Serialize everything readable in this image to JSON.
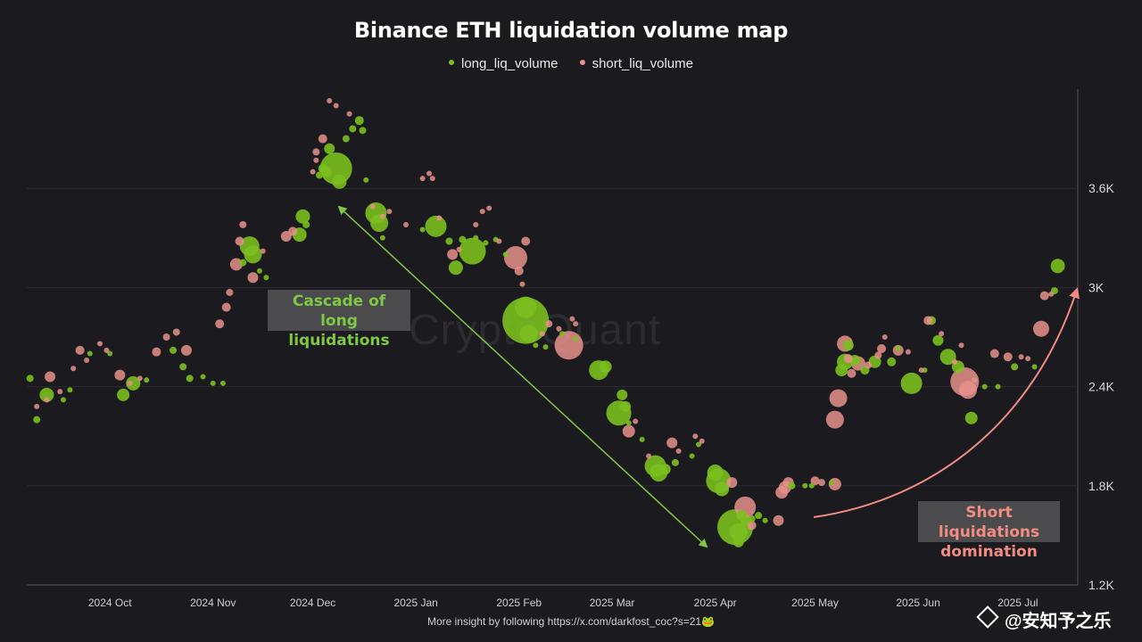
{
  "title": "Binance ETH liquidation volume map",
  "legend": [
    {
      "label": "long_liq_volume",
      "color": "#7bbf1e"
    },
    {
      "label": "short_liq_volume",
      "color": "#e8908a"
    }
  ],
  "annotations": {
    "long": "Cascade of long liquidations",
    "short": "Short liquidations domination"
  },
  "watermark": "CryptoQuant",
  "footer": "More insight by following https://x.com/darkfost_coc?s=21🐸",
  "credit": "@安知予之乐",
  "colors": {
    "background": "#1b1b1f",
    "long": "#7bbf1e",
    "short": "#e8908a",
    "grid": "#2b2b30"
  },
  "chart_data": {
    "type": "scatter",
    "title": "Binance ETH liquidation volume map",
    "y_axis": {
      "position": "right",
      "ticks": [
        "1.2K",
        "1.8K",
        "2.4K",
        "3K",
        "3.6K"
      ],
      "range": [
        1200,
        4200
      ]
    },
    "x_axis": {
      "ticks": [
        "2024 Oct",
        "2024 Nov",
        "2024 Dec",
        "2025 Jan",
        "2025 Feb",
        "2025 Mar",
        "2025 Apr",
        "2025 May",
        "2025 Jun",
        "2025 Jul"
      ],
      "range": [
        "2024-09-06",
        "2025-07-19"
      ]
    },
    "grid": "horizontal",
    "legend_position": "top-center",
    "series": [
      {
        "name": "long_liq_volume",
        "color": "#7bbf1e",
        "points": [
          [
            "2024-09-07",
            2450,
            4
          ],
          [
            "2024-09-09",
            2200,
            4
          ],
          [
            "2024-09-12",
            2350,
            8
          ],
          [
            "2024-09-17",
            2320,
            3
          ],
          [
            "2024-09-19",
            2380,
            3
          ],
          [
            "2024-09-25",
            2600,
            3
          ],
          [
            "2024-10-01",
            2600,
            3
          ],
          [
            "2024-10-05",
            2350,
            7
          ],
          [
            "2024-10-08",
            2420,
            8
          ],
          [
            "2024-10-12",
            2440,
            3
          ],
          [
            "2024-10-20",
            2620,
            4
          ],
          [
            "2024-10-23",
            2520,
            4
          ],
          [
            "2024-10-25",
            2450,
            4
          ],
          [
            "2024-10-29",
            2460,
            3
          ],
          [
            "2024-11-01",
            2420,
            3
          ],
          [
            "2024-11-04",
            2420,
            3
          ],
          [
            "2024-11-10",
            3150,
            4
          ],
          [
            "2024-11-12",
            3250,
            11
          ],
          [
            "2024-11-13",
            3200,
            10
          ],
          [
            "2024-11-15",
            3100,
            3
          ],
          [
            "2024-11-17",
            3060,
            3
          ],
          [
            "2024-11-27",
            3320,
            8
          ],
          [
            "2024-11-28",
            3430,
            8
          ],
          [
            "2024-11-29",
            3380,
            4
          ],
          [
            "2024-12-03",
            3680,
            4
          ],
          [
            "2024-12-04",
            3720,
            5
          ],
          [
            "2024-12-05",
            3700,
            6
          ],
          [
            "2024-12-06",
            3840,
            6
          ],
          [
            "2024-12-08",
            3720,
            18
          ],
          [
            "2024-12-09",
            3640,
            8
          ],
          [
            "2024-12-11",
            3900,
            4
          ],
          [
            "2024-12-13",
            3960,
            4
          ],
          [
            "2024-12-15",
            4010,
            5
          ],
          [
            "2024-12-16",
            3950,
            4
          ],
          [
            "2024-12-17",
            3650,
            3
          ],
          [
            "2024-12-20",
            3450,
            12
          ],
          [
            "2024-12-21",
            3390,
            10
          ],
          [
            "2024-12-22",
            3300,
            3
          ],
          [
            "2025-01-03",
            3350,
            3
          ],
          [
            "2025-01-07",
            3370,
            12
          ],
          [
            "2025-01-11",
            3280,
            4
          ],
          [
            "2025-01-13",
            3120,
            8
          ],
          [
            "2025-01-15",
            3290,
            4
          ],
          [
            "2025-01-18",
            3220,
            15
          ],
          [
            "2025-01-19",
            3300,
            3
          ],
          [
            "2025-01-22",
            3270,
            3
          ],
          [
            "2025-01-25",
            3290,
            3
          ],
          [
            "2025-01-28",
            3200,
            3
          ],
          [
            "2025-02-03",
            2800,
            26
          ],
          [
            "2025-02-03",
            2880,
            12
          ],
          [
            "2025-02-04",
            2720,
            10
          ],
          [
            "2025-02-06",
            2650,
            3
          ],
          [
            "2025-02-09",
            2640,
            3
          ],
          [
            "2025-02-14",
            2720,
            3
          ],
          [
            "2025-02-18",
            2690,
            3
          ],
          [
            "2025-02-25",
            2500,
            11
          ],
          [
            "2025-02-27",
            2520,
            7
          ],
          [
            "2025-03-03",
            2240,
            14
          ],
          [
            "2025-03-04",
            2350,
            6
          ],
          [
            "2025-03-05",
            2280,
            6
          ],
          [
            "2025-03-06",
            2180,
            3
          ],
          [
            "2025-03-10",
            2080,
            3
          ],
          [
            "2025-03-14",
            1920,
            12
          ],
          [
            "2025-03-15",
            1880,
            10
          ],
          [
            "2025-03-17",
            1900,
            6
          ],
          [
            "2025-03-20",
            1940,
            4
          ],
          [
            "2025-03-25",
            1980,
            3
          ],
          [
            "2025-03-27",
            2050,
            3
          ],
          [
            "2025-04-01",
            1880,
            9
          ],
          [
            "2025-04-02",
            1830,
            14
          ],
          [
            "2025-04-03",
            1780,
            8
          ],
          [
            "2025-04-07",
            1550,
            20
          ],
          [
            "2025-04-08",
            1520,
            10
          ],
          [
            "2025-04-08",
            1460,
            6
          ],
          [
            "2025-04-09",
            1620,
            6
          ],
          [
            "2025-04-10",
            1580,
            5
          ],
          [
            "2025-04-12",
            1600,
            4
          ],
          [
            "2025-04-14",
            1620,
            4
          ],
          [
            "2025-04-16",
            1590,
            3
          ],
          [
            "2025-04-24",
            1800,
            4
          ],
          [
            "2025-04-28",
            1800,
            3
          ],
          [
            "2025-04-30",
            1800,
            3
          ],
          [
            "2025-05-06",
            1820,
            3
          ],
          [
            "2025-05-09",
            2500,
            7
          ],
          [
            "2025-05-10",
            2550,
            9
          ],
          [
            "2025-05-11",
            2650,
            6
          ],
          [
            "2025-05-13",
            2560,
            6
          ],
          [
            "2025-05-16",
            2500,
            5
          ],
          [
            "2025-05-19",
            2550,
            7
          ],
          [
            "2025-05-24",
            2550,
            5
          ],
          [
            "2025-05-26",
            2630,
            3
          ],
          [
            "2025-05-30",
            2420,
            12
          ],
          [
            "2025-06-03",
            2500,
            3
          ],
          [
            "2025-06-05",
            2800,
            5
          ],
          [
            "2025-06-07",
            2680,
            6
          ],
          [
            "2025-06-10",
            2580,
            9
          ],
          [
            "2025-06-13",
            2520,
            7
          ],
          [
            "2025-06-17",
            2210,
            7
          ],
          [
            "2025-06-21",
            2400,
            3
          ],
          [
            "2025-06-25",
            2400,
            3
          ],
          [
            "2025-06-30",
            2520,
            4
          ],
          [
            "2025-07-06",
            2520,
            3
          ],
          [
            "2025-07-12",
            2980,
            4
          ],
          [
            "2025-07-13",
            3130,
            8
          ]
        ]
      },
      {
        "name": "short_liq_volume",
        "color": "#e8908a",
        "points": [
          [
            "2024-09-09",
            2280,
            3
          ],
          [
            "2024-09-12",
            2320,
            3
          ],
          [
            "2024-09-13",
            2460,
            6
          ],
          [
            "2024-09-16",
            2370,
            3
          ],
          [
            "2024-09-20",
            2510,
            3
          ],
          [
            "2024-09-22",
            2620,
            5
          ],
          [
            "2024-09-24",
            2560,
            3
          ],
          [
            "2024-09-28",
            2660,
            3
          ],
          [
            "2024-09-30",
            2620,
            3
          ],
          [
            "2024-10-04",
            2470,
            6
          ],
          [
            "2024-10-07",
            2420,
            3
          ],
          [
            "2024-10-10",
            2450,
            3
          ],
          [
            "2024-10-15",
            2610,
            5
          ],
          [
            "2024-10-18",
            2700,
            4
          ],
          [
            "2024-10-21",
            2730,
            4
          ],
          [
            "2024-10-24",
            2620,
            6
          ],
          [
            "2024-11-03",
            2780,
            5
          ],
          [
            "2024-11-05",
            2880,
            5
          ],
          [
            "2024-11-06",
            2970,
            4
          ],
          [
            "2024-11-08",
            3140,
            7
          ],
          [
            "2024-11-09",
            3280,
            5
          ],
          [
            "2024-11-10",
            3380,
            4
          ],
          [
            "2024-11-13",
            3060,
            6
          ],
          [
            "2024-11-16",
            3220,
            3
          ],
          [
            "2024-11-23",
            3310,
            6
          ],
          [
            "2024-11-25",
            3340,
            5
          ],
          [
            "2024-12-01",
            3700,
            3
          ],
          [
            "2024-12-02",
            3770,
            3
          ],
          [
            "2024-12-02",
            3820,
            4
          ],
          [
            "2024-12-04",
            3900,
            5
          ],
          [
            "2024-12-06",
            4130,
            3
          ],
          [
            "2024-12-08",
            4100,
            3
          ],
          [
            "2024-12-12",
            4050,
            3
          ],
          [
            "2024-12-19",
            3490,
            3
          ],
          [
            "2024-12-22",
            3430,
            3
          ],
          [
            "2024-12-24",
            3460,
            3
          ],
          [
            "2024-12-29",
            3380,
            3
          ],
          [
            "2025-01-03",
            3660,
            3
          ],
          [
            "2025-01-05",
            3690,
            3
          ],
          [
            "2025-01-06",
            3660,
            3
          ],
          [
            "2025-01-08",
            3420,
            3
          ],
          [
            "2025-01-12",
            3200,
            6
          ],
          [
            "2025-01-14",
            3230,
            3
          ],
          [
            "2025-01-19",
            3380,
            3
          ],
          [
            "2025-01-21",
            3460,
            3
          ],
          [
            "2025-01-23",
            3480,
            3
          ],
          [
            "2025-01-26",
            3280,
            3
          ],
          [
            "2025-01-31",
            3180,
            13
          ],
          [
            "2025-02-01",
            3100,
            5
          ],
          [
            "2025-02-02",
            3020,
            3
          ],
          [
            "2025-02-03",
            3280,
            5
          ],
          [
            "2025-02-08",
            2720,
            3
          ],
          [
            "2025-02-10",
            2780,
            4
          ],
          [
            "2025-02-13",
            2750,
            3
          ],
          [
            "2025-02-16",
            2650,
            16
          ],
          [
            "2025-02-17",
            2810,
            3
          ],
          [
            "2025-02-18",
            2780,
            3
          ],
          [
            "2025-03-06",
            2130,
            7
          ],
          [
            "2025-03-08",
            2190,
            3
          ],
          [
            "2025-03-12",
            1980,
            3
          ],
          [
            "2025-03-19",
            2060,
            6
          ],
          [
            "2025-03-21",
            2010,
            3
          ],
          [
            "2025-03-26",
            2100,
            3
          ],
          [
            "2025-03-28",
            2070,
            3
          ],
          [
            "2025-04-06",
            1820,
            6
          ],
          [
            "2025-04-10",
            1670,
            12
          ],
          [
            "2025-04-12",
            1560,
            5
          ],
          [
            "2025-04-20",
            1590,
            6
          ],
          [
            "2025-04-21",
            1760,
            7
          ],
          [
            "2025-04-22",
            1790,
            7
          ],
          [
            "2025-04-23",
            1820,
            6
          ],
          [
            "2025-05-01",
            1830,
            5
          ],
          [
            "2025-05-03",
            1820,
            4
          ],
          [
            "2025-05-07",
            1810,
            7
          ],
          [
            "2025-05-07",
            2200,
            10
          ],
          [
            "2025-05-08",
            2330,
            10
          ],
          [
            "2025-05-10",
            2660,
            9
          ],
          [
            "2025-05-11",
            2570,
            5
          ],
          [
            "2025-05-12",
            2480,
            5
          ],
          [
            "2025-05-14",
            2540,
            8
          ],
          [
            "2025-05-17",
            2530,
            4
          ],
          [
            "2025-05-20",
            2590,
            4
          ],
          [
            "2025-05-21",
            2630,
            5
          ],
          [
            "2025-05-22",
            2700,
            3
          ],
          [
            "2025-05-26",
            2620,
            6
          ],
          [
            "2025-05-29",
            2610,
            3
          ],
          [
            "2025-06-02",
            2500,
            3
          ],
          [
            "2025-06-04",
            2800,
            5
          ],
          [
            "2025-06-08",
            2720,
            3
          ],
          [
            "2025-06-12",
            2550,
            3
          ],
          [
            "2025-06-14",
            2650,
            3
          ],
          [
            "2025-06-15",
            2430,
            16
          ],
          [
            "2025-06-16",
            2380,
            10
          ],
          [
            "2025-06-18",
            2440,
            3
          ],
          [
            "2025-06-24",
            2600,
            5
          ],
          [
            "2025-06-28",
            2580,
            5
          ],
          [
            "2025-07-02",
            2580,
            3
          ],
          [
            "2025-07-04",
            2570,
            3
          ],
          [
            "2025-07-08",
            2750,
            9
          ],
          [
            "2025-07-09",
            2950,
            5
          ],
          [
            "2025-07-11",
            2960,
            3
          ]
        ]
      }
    ]
  }
}
